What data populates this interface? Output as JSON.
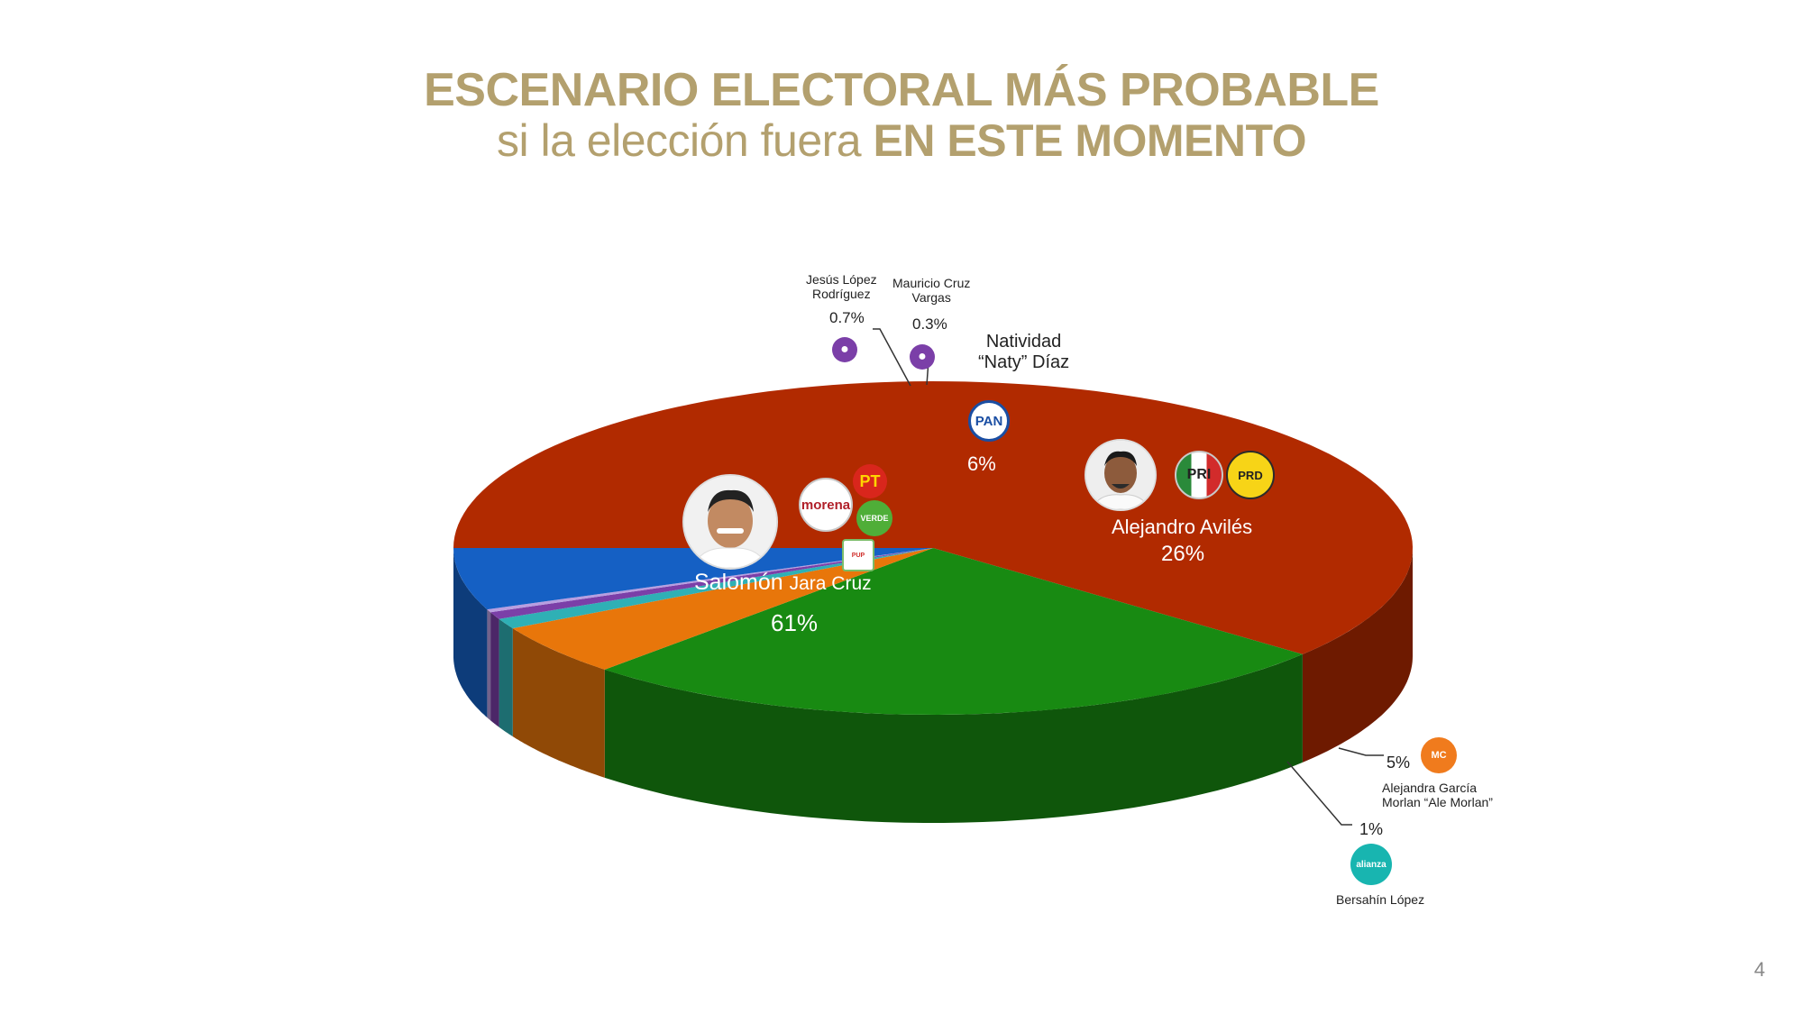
{
  "title": {
    "line1": "ESCENARIO ELECTORAL MÁS PROBABLE",
    "line2_normal": "si la elección fuera ",
    "line2_bold": "EN ESTE MOMENTO"
  },
  "page_number": "4",
  "colors": {
    "title": "#b3a06e",
    "salomon": "#b12a00",
    "aviles": "#188a12",
    "natividad": "#1560c4",
    "ale_morlan": "#e8760a",
    "bersahin": "#2fb0b5",
    "jesus": "#7b3fa8",
    "mauricio": "#b89ee0"
  },
  "chart_data": {
    "type": "pie",
    "title": "",
    "series": [
      {
        "key": "salomon",
        "first_name": "Salomón",
        "last_name": "Jara Cruz",
        "name": "Salomón Jara Cruz",
        "value": 61,
        "label": "61%",
        "color": "#b12a00",
        "logos": [
          "morena",
          "PT",
          "VERDE",
          "PARTIDO UNIDAD POPULAR"
        ]
      },
      {
        "key": "aviles",
        "first_name": "Alejandro",
        "last_name": "Avilés",
        "name": "Alejandro Avilés",
        "value": 26,
        "label": "26%",
        "color": "#188a12",
        "logos": [
          "PRI",
          "PRD"
        ]
      },
      {
        "key": "ale_morlan",
        "name_line1": "Alejandra García",
        "name_line2": "Morlan “Ale Morlan”",
        "value": 5,
        "label": "5%",
        "color": "#e8760a",
        "logos": [
          "MC"
        ]
      },
      {
        "key": "bersahin",
        "name": "Bersahín López",
        "value": 1,
        "label": "1%",
        "color": "#2fb0b5",
        "logos": [
          "alianza"
        ]
      },
      {
        "key": "jesus",
        "name_line1": "Jesús López",
        "name_line2": "Rodríguez",
        "value": 0.7,
        "label": "0.7%",
        "color": "#7b3fa8",
        "logos": []
      },
      {
        "key": "mauricio",
        "name_line1": "Mauricio Cruz",
        "name_line2": "Vargas",
        "value": 0.3,
        "label": "0.3%",
        "color": "#b89ee0",
        "logos": []
      },
      {
        "key": "natividad",
        "name_line1": "Natividad",
        "name_line2": "“Naty” Díaz",
        "value": 6,
        "label": "6%",
        "color": "#1560c4",
        "logos": [
          "PAN"
        ]
      }
    ],
    "legend": "none"
  }
}
